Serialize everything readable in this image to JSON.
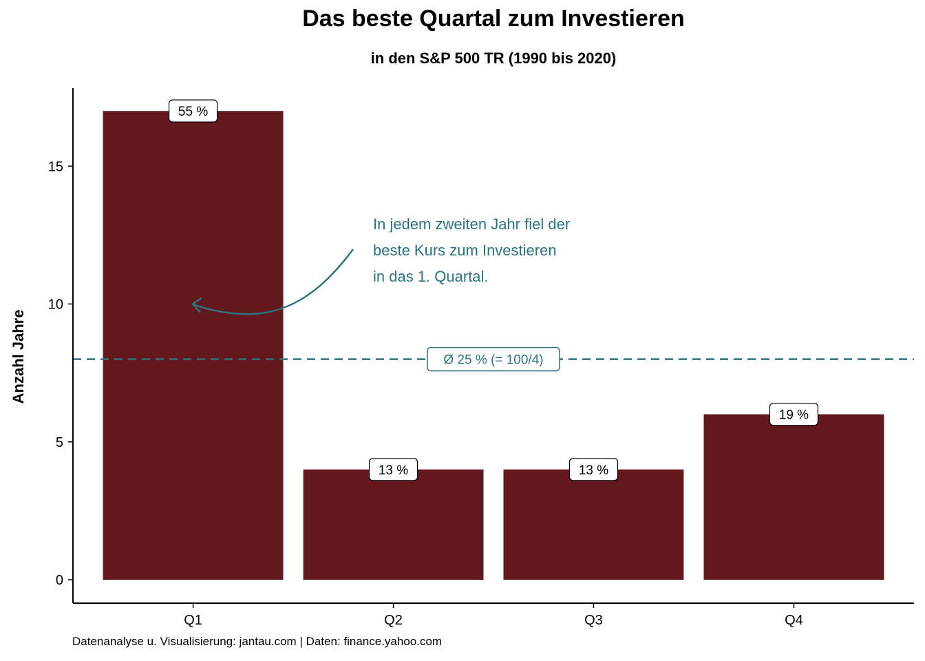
{
  "chart_data": {
    "type": "bar",
    "title": "Das beste Quartal zum Investieren",
    "subtitle": "in den S&P 500 TR (1990 bis 2020)",
    "xlabel": "",
    "ylabel": "Anzahl Jahre",
    "categories": [
      "Q1",
      "Q2",
      "Q3",
      "Q4"
    ],
    "values": [
      17,
      4,
      4,
      6
    ],
    "data_labels": [
      "55 %",
      "13 %",
      "13 %",
      "19 %"
    ],
    "ylim": [
      0,
      17.8
    ],
    "yticks": [
      0,
      5,
      10,
      15
    ],
    "grid": false,
    "bar_color": "#63181e",
    "reference_line": {
      "y": 8,
      "label": "Ø 25 % (= 100/4)",
      "color": "#2a7480",
      "style": "dashed"
    },
    "annotation": {
      "lines": [
        "In jedem zweiten Jahr fiel der",
        "beste Kurs zum Investieren",
        "in das 1. Quartal."
      ],
      "arrow_target": {
        "category": "Q1",
        "y": 10
      },
      "color": "#2a7480"
    },
    "caption": "Datenanalyse u. Visualisierung: jantau.com | Daten: finance.yahoo.com"
  }
}
